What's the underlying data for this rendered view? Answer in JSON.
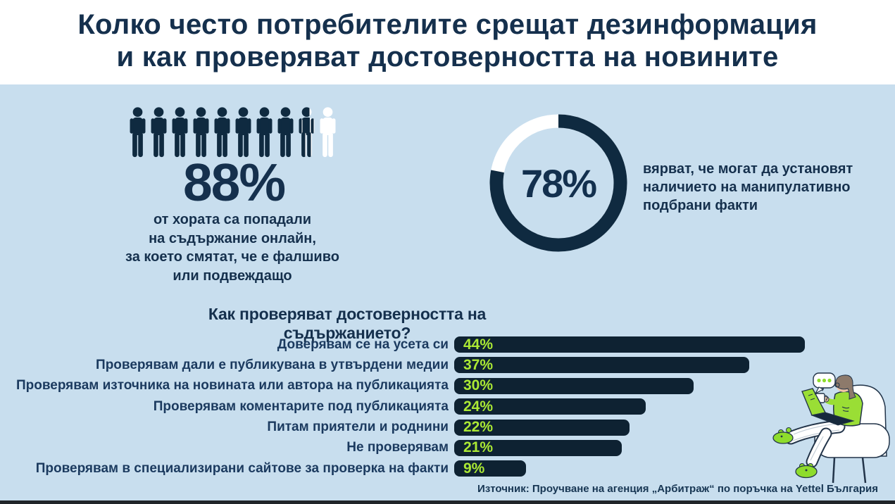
{
  "title": {
    "line1": "Колко често потребителите срещат дезинформация",
    "line2": "и как проверяват достоверността на новините"
  },
  "people_stat": {
    "value": "88%",
    "lines": [
      "от хората са попадали",
      "на съдържание онлайн,",
      "за което смятат, че е фалшиво",
      "или подвеждащо"
    ]
  },
  "donut_stat": {
    "value": "78%",
    "lines": [
      "вярват, че могат да установят",
      "наличието на манипулативно",
      "подбрани факти"
    ]
  },
  "source": "Източник: Проучване на агенция „Арбитраж“ по поръчка на Yettel България",
  "colors": {
    "background_blue": "#c8deee",
    "navy_text": "#15304d",
    "figure_navy": "#0f2a40",
    "bar_navy": "#0e2232",
    "green": "#abe934",
    "white": "#ffffff",
    "footer_strip": "#212529"
  },
  "chart_data": [
    {
      "type": "pictogram",
      "value": 88,
      "value_label": "88%",
      "total_icons": 10,
      "filled_icons": 8.8,
      "description": "от хората са попадали на съдържание онлайн, за което смятат, че е фалшиво или подвеждащо"
    },
    {
      "type": "donut",
      "value": 78,
      "value_label": "78%",
      "description": "вярват, че могат да установят наличието на манипулативно подбрани факти"
    },
    {
      "type": "bar",
      "orientation": "horizontal",
      "title": "Как проверяват достоверността на съдържанието?",
      "categories": [
        "Доверявам се на усета си",
        "Проверявам дали е публикувана в утвърдени медии",
        "Проверявам източника на новината или автора на публикацията",
        "Проверявам коментарите под публикацията",
        "Питам приятели и роднини",
        "Не проверявам",
        "Проверявам в специализирани сайтове за проверка на факти"
      ],
      "values": [
        44,
        37,
        30,
        24,
        22,
        21,
        9
      ],
      "value_labels": [
        "44%",
        "37%",
        "30%",
        "24%",
        "22%",
        "21%",
        "9%"
      ],
      "xlim": [
        0,
        44
      ],
      "grid": false,
      "legend": false
    }
  ]
}
